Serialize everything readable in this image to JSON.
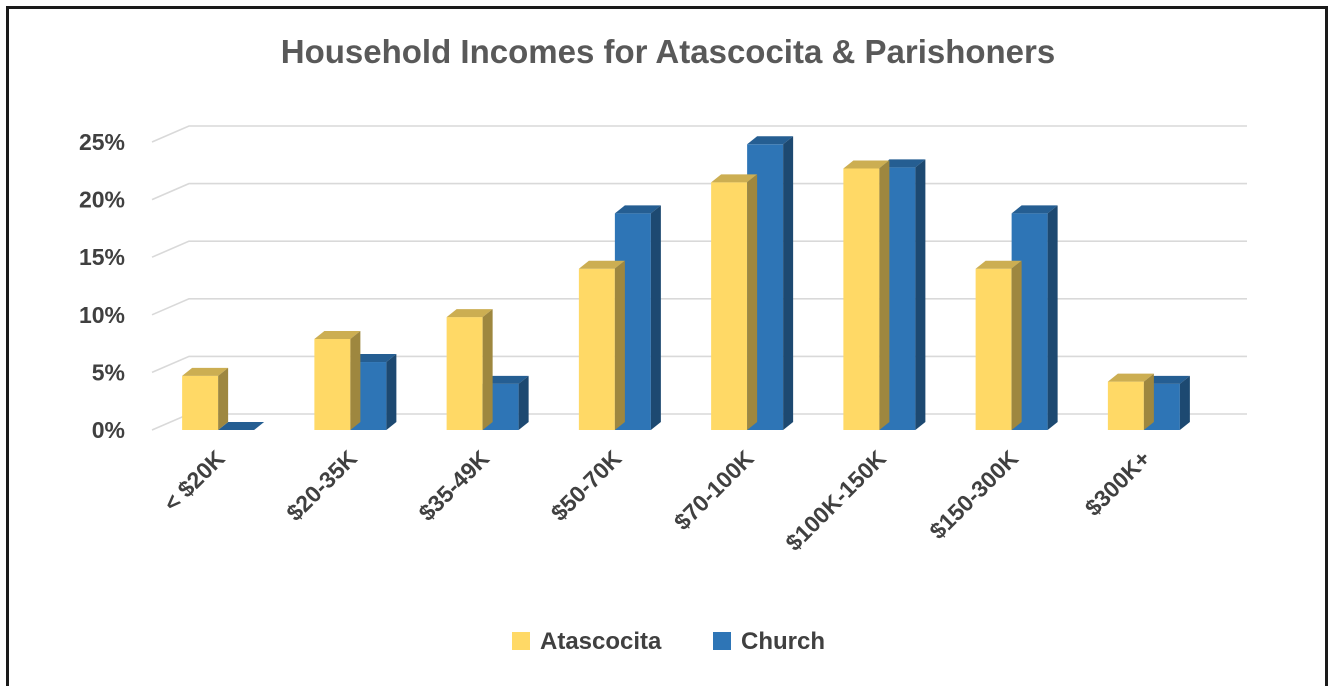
{
  "chart_data": {
    "type": "bar",
    "style": "3d-clustered-column",
    "title": "Household Incomes for Atascocita & Parishoners",
    "xlabel": "",
    "ylabel": "",
    "categories": [
      "< $20K",
      "$20-35K",
      "$35-49K",
      "$50-70K",
      "$70-100K",
      "$100K-150K",
      "$150-300K",
      "$300K+"
    ],
    "series": [
      {
        "name": "Atascocita",
        "color": "#ffd966",
        "values": [
          4.7,
          7.9,
          9.8,
          14.0,
          21.5,
          22.7,
          14.0,
          4.2
        ]
      },
      {
        "name": "Church",
        "color": "#2e75b6",
        "values": [
          0.0,
          5.9,
          4.0,
          18.8,
          24.8,
          22.8,
          18.8,
          4.0
        ]
      }
    ],
    "yticks": [
      "0%",
      "5%",
      "10%",
      "15%",
      "20%",
      "25%"
    ],
    "ytick_values": [
      0,
      5,
      10,
      15,
      20,
      25
    ],
    "ylim": [
      0,
      25
    ],
    "grid": true,
    "legend_position": "bottom"
  }
}
